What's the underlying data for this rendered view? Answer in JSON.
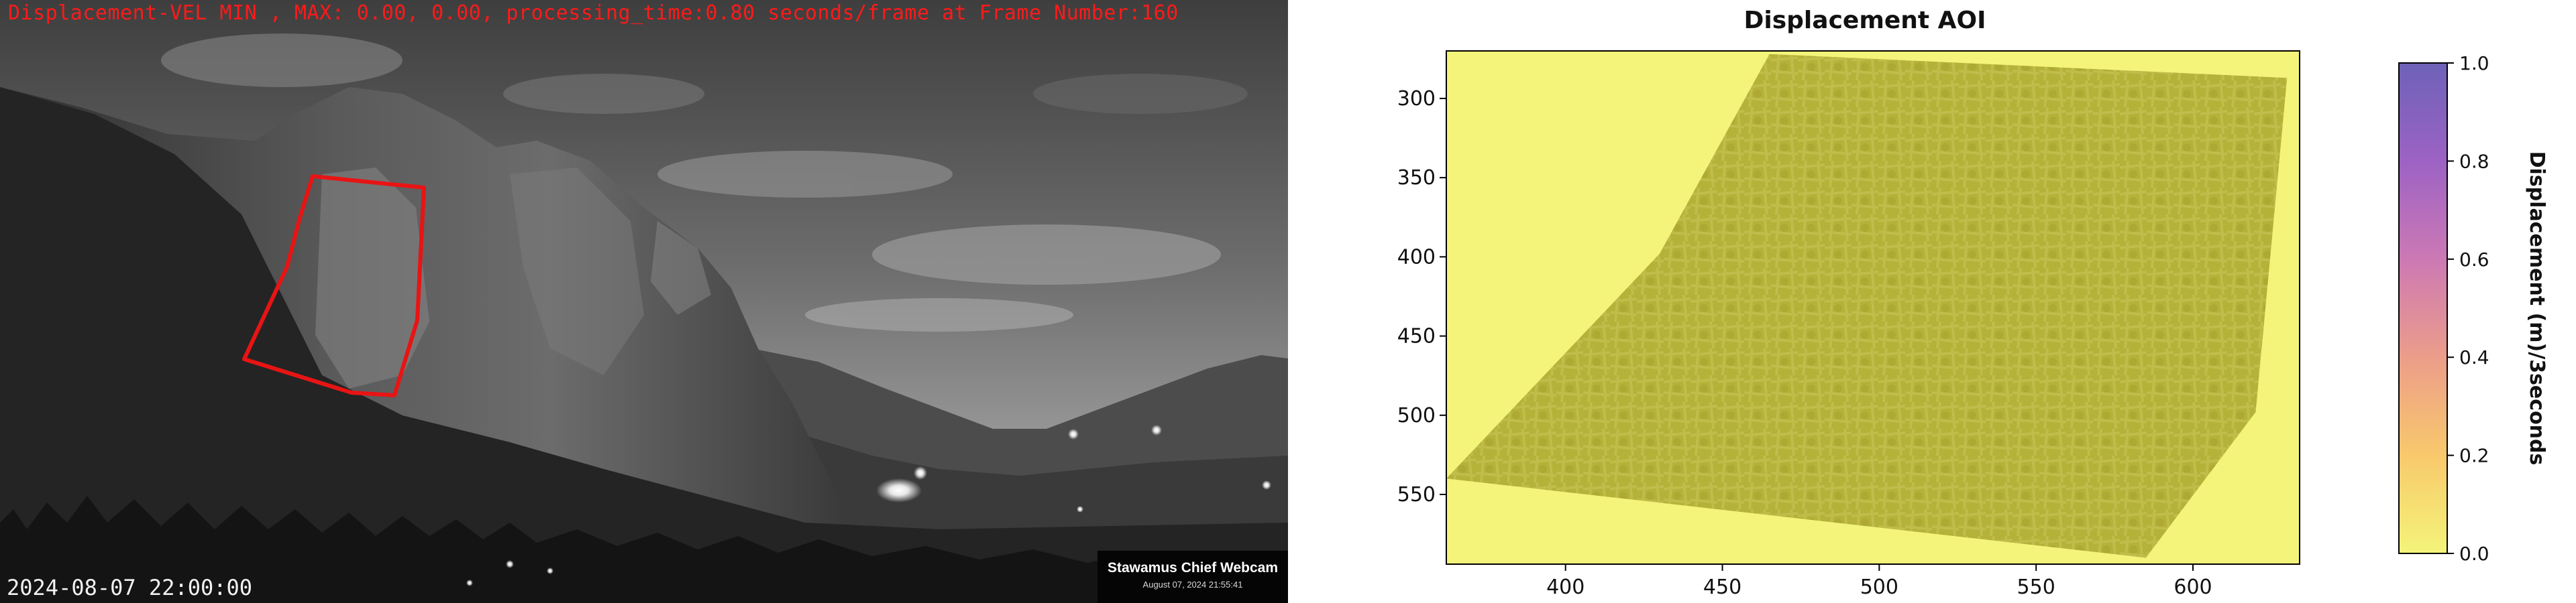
{
  "webcam": {
    "overlay_text": "Displacement-VEL MIN , MAX: 0.00, 0.00, processing_time:0.80 seconds/frame at Frame Number:160",
    "timestamp": "2024-08-07 22:00:00",
    "badge_title": "Stawamus Chief Webcam",
    "badge_subtitle": "August 07, 2024 21:55:41",
    "aoi_color": "#e81414"
  },
  "chart_data": {
    "type": "heatmap",
    "title": "Displacement AOI",
    "xlabel": "",
    "ylabel": "",
    "xlim": [
      362,
      634
    ],
    "ylim": [
      594,
      270
    ],
    "xticks": [
      400,
      450,
      500,
      550,
      600
    ],
    "yticks": [
      300,
      350,
      400,
      450,
      500,
      550
    ],
    "colorbar": {
      "label": "Displacement (m)/3seconds",
      "range": [
        0.0,
        1.0
      ],
      "ticks": [
        "0.0",
        "0.2",
        "0.4",
        "0.6",
        "0.8",
        "1.0"
      ],
      "colors": [
        "#f4f47a",
        "#f8c96c",
        "#ec9d8a",
        "#cc79b4",
        "#9c62c4",
        "#6d62b8"
      ]
    },
    "values_min": 0.0,
    "values_max": 0.0,
    "aoi_outline": [
      [
        465,
        272
      ],
      [
        630,
        287
      ],
      [
        620,
        498
      ],
      [
        585,
        590
      ],
      [
        362,
        540
      ],
      [
        430,
        398
      ]
    ]
  }
}
